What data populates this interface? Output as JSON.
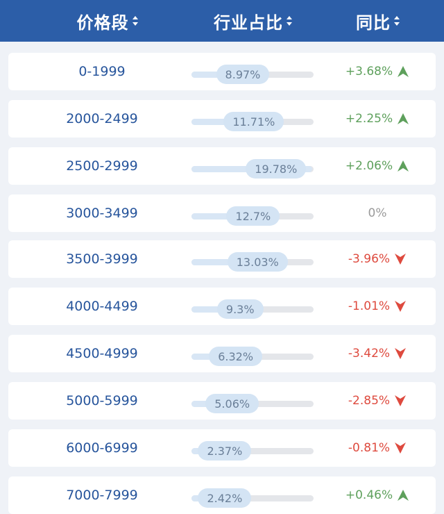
{
  "header": {
    "col_price": "价格段",
    "col_share": "行业占比",
    "col_yoy": "同比",
    "sort_icon": "sort-updown-icon"
  },
  "colors": {
    "header_bg": "#2c5ea8",
    "up": "#5ea05c",
    "down": "#de4a3e",
    "flat": "#9a9a9a",
    "range_text": "#27559c"
  },
  "rows": [
    {
      "range": "0-1999",
      "share": "8.97%",
      "share_value": 8.97,
      "yoy": "+3.68%",
      "trend": "up"
    },
    {
      "range": "2000-2499",
      "share": "11.71%",
      "share_value": 11.71,
      "yoy": "+2.25%",
      "trend": "up"
    },
    {
      "range": "2500-2999",
      "share": "19.78%",
      "share_value": 19.78,
      "yoy": "+2.06%",
      "trend": "up"
    },
    {
      "range": "3000-3499",
      "share": "12.7%",
      "share_value": 12.7,
      "yoy": "0%",
      "trend": "flat"
    },
    {
      "range": "3500-3999",
      "share": "13.03%",
      "share_value": 13.03,
      "yoy": "-3.96%",
      "trend": "down"
    },
    {
      "range": "4000-4499",
      "share": "9.3%",
      "share_value": 9.3,
      "yoy": "-1.01%",
      "trend": "down"
    },
    {
      "range": "4500-4999",
      "share": "6.32%",
      "share_value": 6.32,
      "yoy": "-3.42%",
      "trend": "down"
    },
    {
      "range": "5000-5999",
      "share": "5.06%",
      "share_value": 5.06,
      "yoy": "-2.85%",
      "trend": "down"
    },
    {
      "range": "6000-6999",
      "share": "2.37%",
      "share_value": 2.37,
      "yoy": "-0.81%",
      "trend": "down"
    },
    {
      "range": "7000-7999",
      "share": "2.42%",
      "share_value": 2.42,
      "yoy": "+0.46%",
      "trend": "up"
    }
  ]
}
